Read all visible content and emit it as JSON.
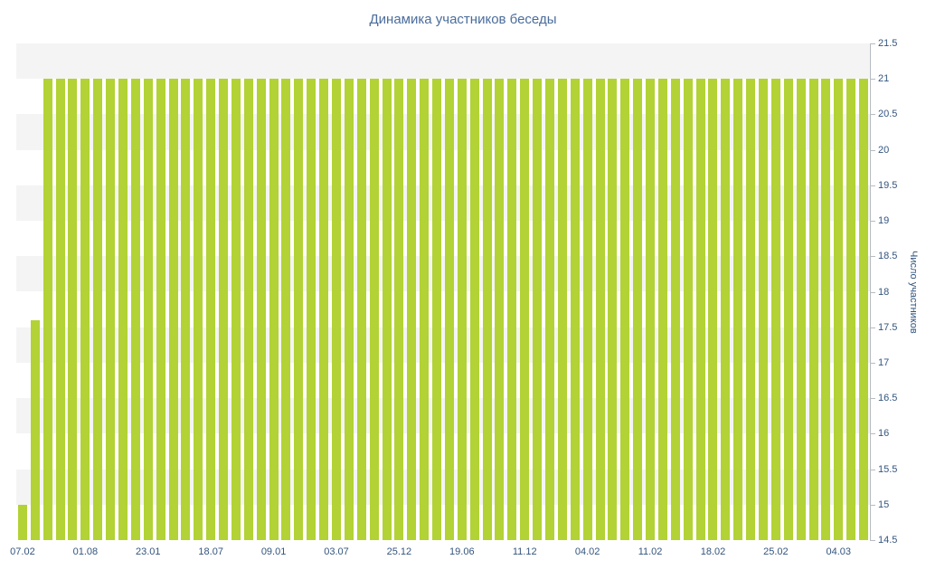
{
  "title": "Динамика участников беседы",
  "chart_data": {
    "type": "bar",
    "title": "Динамика участников беседы",
    "xlabel": "",
    "ylabel": "Число участников",
    "ylim": [
      14.5,
      21.5
    ],
    "y_ticks": [
      "21.5",
      "21",
      "20.5",
      "20",
      "19.5",
      "19",
      "18.5",
      "18",
      "17.5",
      "17",
      "16.5",
      "16",
      "15.5",
      "15",
      "14.5"
    ],
    "x_tick_labels": [
      "07.02",
      "01.08",
      "23.01",
      "18.07",
      "09.01",
      "03.07",
      "25.12",
      "19.06",
      "11.12",
      "04.02",
      "11.02",
      "18.02",
      "25.02",
      "04.03"
    ],
    "x_tick_every": 5,
    "values": [
      15,
      17.6,
      21,
      21,
      21,
      21,
      21,
      21,
      21,
      21,
      21,
      21,
      21,
      21,
      21,
      21,
      21,
      21,
      21,
      21,
      21,
      21,
      21,
      21,
      21,
      21,
      21,
      21,
      21,
      21,
      21,
      21,
      21,
      21,
      21,
      21,
      21,
      21,
      21,
      21,
      21,
      21,
      21,
      21,
      21,
      21,
      21,
      21,
      21,
      21,
      21,
      21,
      21,
      21,
      21,
      21,
      21,
      21,
      21,
      21,
      21,
      21,
      21,
      21,
      21,
      21,
      21,
      21
    ],
    "legend": false,
    "grid": "horizontal-bands",
    "band_step": 0.5,
    "bar_color": "#b2d235",
    "band_color": "#f4f4f4",
    "band_alt_color": "#ffffff",
    "title_color": "#4b6d9b",
    "label_color": "#33557f",
    "axis_color": "#b6bcc2"
  }
}
